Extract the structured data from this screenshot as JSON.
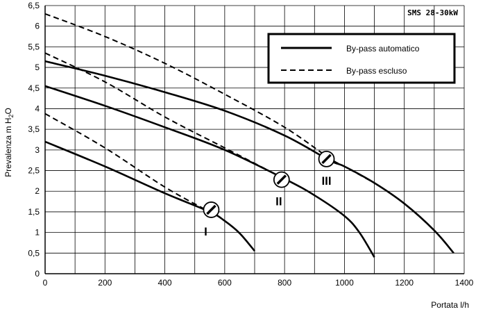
{
  "chart_data": {
    "type": "line",
    "model_label": "SMS 28-30kW",
    "xlabel": "Portata l/h",
    "ylabel_main": "Prevalenza m H",
    "ylabel_sub": "2",
    "ylabel_end": "O",
    "xlim": [
      0,
      1400
    ],
    "ylim": [
      0,
      6.5
    ],
    "x_ticks": [
      0,
      200,
      400,
      600,
      800,
      1000,
      1200,
      1400
    ],
    "y_ticks": [
      0,
      0.5,
      1,
      1.5,
      2,
      2.5,
      3,
      3.5,
      4,
      4.5,
      5,
      5.5,
      6,
      6.5
    ],
    "y_tick_labels": [
      "0",
      "0,5",
      "1",
      "1,5",
      "2",
      "2,5",
      "3",
      "3,5",
      "4",
      "4,5",
      "5",
      "5,5",
      "6",
      "6,5"
    ],
    "grid": true,
    "legend_position": "top-right",
    "legend": [
      {
        "label": "By-pass automatico",
        "style": "solid"
      },
      {
        "label": "By-pass escluso",
        "style": "dashed"
      }
    ],
    "series": [
      {
        "style": "solid",
        "speed": "I",
        "x": [
          0,
          200,
          400,
          550,
          600,
          650,
          700
        ],
        "y": [
          3.2,
          2.6,
          1.95,
          1.5,
          1.28,
          0.98,
          0.55
        ]
      },
      {
        "style": "dashed",
        "speed": "I",
        "x": [
          0,
          200,
          400,
          550
        ],
        "y": [
          3.88,
          3.05,
          2.1,
          1.5
        ]
      },
      {
        "style": "solid",
        "speed": "II",
        "x": [
          0,
          200,
          400,
          600,
          800,
          900,
          1000,
          1050,
          1100
        ],
        "y": [
          4.55,
          4.07,
          3.55,
          3.0,
          2.3,
          1.9,
          1.4,
          1.0,
          0.4
        ]
      },
      {
        "style": "dashed",
        "speed": "II",
        "x": [
          0,
          200,
          400,
          600,
          800
        ],
        "y": [
          5.35,
          4.65,
          3.8,
          3.05,
          2.3
        ]
      },
      {
        "style": "solid",
        "speed": "III",
        "x": [
          0,
          200,
          400,
          600,
          800,
          950,
          1000,
          1100,
          1200,
          1300,
          1365
        ],
        "y": [
          5.15,
          4.8,
          4.4,
          3.95,
          3.35,
          2.75,
          2.6,
          2.2,
          1.7,
          1.05,
          0.5
        ]
      },
      {
        "style": "dashed",
        "speed": "III",
        "x": [
          0,
          200,
          400,
          600,
          800,
          950,
          1000,
          1100
        ],
        "y": [
          6.3,
          5.75,
          5.1,
          4.35,
          3.55,
          2.8,
          2.6,
          2.2
        ]
      }
    ],
    "operating_points": [
      {
        "label": "I",
        "x": 555,
        "y": 1.55
      },
      {
        "label": "II",
        "x": 790,
        "y": 2.28
      },
      {
        "label": "III",
        "x": 940,
        "y": 2.78
      }
    ]
  }
}
